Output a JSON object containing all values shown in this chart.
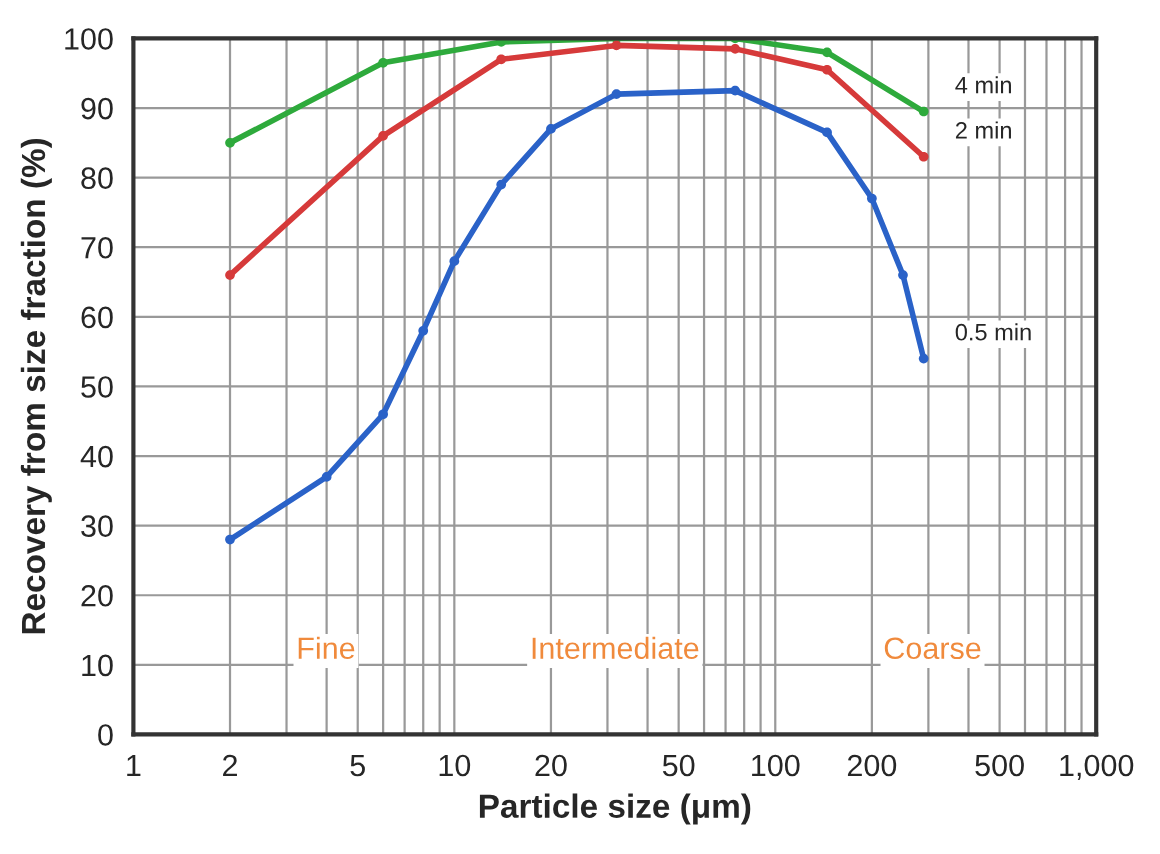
{
  "chart_data": {
    "type": "line",
    "xlabel": "Particle size (μm)",
    "ylabel": "Recovery from size fraction (%)",
    "log": "x",
    "xlim": [
      1,
      1000
    ],
    "xticks": [
      1,
      2,
      5,
      10,
      20,
      50,
      100,
      200,
      500,
      {
        "value": 1000,
        "label": "1,000"
      }
    ],
    "ylim": [
      0,
      100
    ],
    "yticks": [
      0,
      10,
      20,
      30,
      40,
      50,
      60,
      70,
      80,
      90,
      100
    ],
    "grid": true,
    "marker": "circle",
    "line_style": "solid",
    "legend": false,
    "series": [
      {
        "name": "4 min",
        "color": "#2eaa3c",
        "x": [
          2,
          6,
          14,
          32,
          75,
          145,
          290
        ],
        "values": [
          85,
          96.5,
          99.5,
          100,
          100,
          98,
          89.5
        ]
      },
      {
        "name": "2 min",
        "color": "#d63a3a",
        "x": [
          2,
          6,
          14,
          32,
          75,
          145,
          290
        ],
        "values": [
          66,
          86,
          97,
          99,
          98.5,
          95.5,
          83
        ]
      },
      {
        "name": "0.5 min",
        "color": "#2a62c8",
        "x": [
          2,
          4,
          6,
          8,
          10,
          14,
          20,
          32,
          75,
          145,
          200,
          250,
          290
        ],
        "values": [
          28,
          37,
          46,
          58,
          68,
          79,
          87,
          92,
          92.5,
          86.5,
          77,
          66,
          54
        ]
      }
    ],
    "annotations": [
      "Fine",
      "Intermediate",
      "Coarse"
    ]
  }
}
